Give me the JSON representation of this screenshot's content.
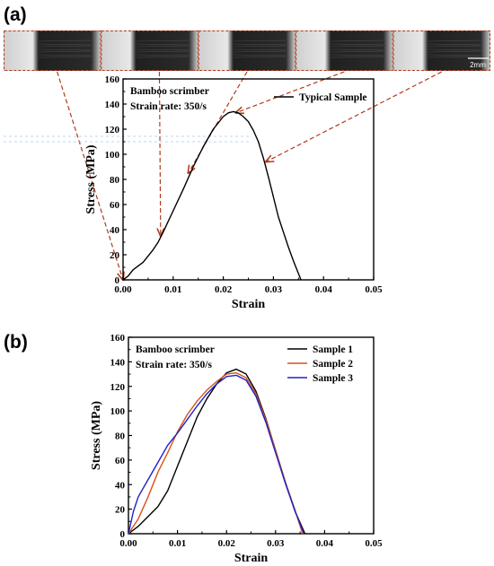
{
  "panel_labels": {
    "a": "(a)",
    "b": "(b)"
  },
  "colors": {
    "sample_1": "#000000",
    "sample_2": "#d4541e",
    "sample_3": "#2020c8",
    "arrow": "#b23a1a"
  },
  "image_strip": {
    "frames": 5,
    "scale_bar_label": "2mm"
  },
  "chart_data": [
    {
      "type": "line",
      "panel": "(a)",
      "xlabel": "Strain",
      "ylabel": "Stress (MPa)",
      "xlim": [
        0,
        0.05
      ],
      "ylim": [
        0,
        160
      ],
      "xticks": [
        "0.00",
        "0.01",
        "0.02",
        "0.03",
        "0.04",
        "0.05"
      ],
      "yticks": [
        "0",
        "20",
        "40",
        "60",
        "80",
        "100",
        "120",
        "140",
        "160"
      ],
      "annotation": [
        "Bamboo scrimber",
        "Strain rate: 350/s"
      ],
      "legend_position": "top-right",
      "series": [
        {
          "name": "Typical Sample",
          "color": "#000000",
          "points": [
            [
              0,
              0
            ],
            [
              0.001,
              3
            ],
            [
              0.002,
              8
            ],
            [
              0.003,
              11
            ],
            [
              0.004,
              14
            ],
            [
              0.005,
              19
            ],
            [
              0.006,
              24
            ],
            [
              0.007,
              30
            ],
            [
              0.008,
              38
            ],
            [
              0.01,
              55
            ],
            [
              0.012,
              72
            ],
            [
              0.014,
              90
            ],
            [
              0.016,
              106
            ],
            [
              0.018,
              120
            ],
            [
              0.02,
              130
            ],
            [
              0.021,
              133
            ],
            [
              0.022,
              134
            ],
            [
              0.023,
              133
            ],
            [
              0.024,
              130
            ],
            [
              0.025,
              126
            ],
            [
              0.026,
              119
            ],
            [
              0.027,
              110
            ],
            [
              0.028,
              97
            ],
            [
              0.029,
              82
            ],
            [
              0.03,
              66
            ],
            [
              0.031,
              50
            ],
            [
              0.032,
              38
            ],
            [
              0.033,
              26
            ],
            [
              0.034,
              15
            ],
            [
              0.035,
              5
            ],
            [
              0.0355,
              0
            ]
          ]
        }
      ],
      "markers": [
        [
          0,
          0
        ],
        [
          0.0075,
          35
        ],
        [
          0.013,
          85
        ],
        [
          0.0225,
          133
        ],
        [
          0.0285,
          94
        ]
      ]
    },
    {
      "type": "line",
      "panel": "(b)",
      "xlabel": "Strain",
      "ylabel": "Stress (MPa)",
      "xlim": [
        0,
        0.05
      ],
      "ylim": [
        0,
        160
      ],
      "xticks": [
        "0.00",
        "0.01",
        "0.02",
        "0.03",
        "0.04",
        "0.05"
      ],
      "yticks": [
        "0",
        "20",
        "40",
        "60",
        "80",
        "100",
        "120",
        "140",
        "160"
      ],
      "annotation": [
        "Bamboo scrimber",
        "Strain rate: 350/s"
      ],
      "legend_position": "top-right",
      "series": [
        {
          "name": "Sample 1",
          "color": "#000000",
          "points": [
            [
              0,
              0
            ],
            [
              0.002,
              6
            ],
            [
              0.004,
              14
            ],
            [
              0.006,
              22
            ],
            [
              0.008,
              35
            ],
            [
              0.01,
              55
            ],
            [
              0.012,
              75
            ],
            [
              0.014,
              95
            ],
            [
              0.016,
              110
            ],
            [
              0.018,
              122
            ],
            [
              0.02,
              131
            ],
            [
              0.022,
              134
            ],
            [
              0.024,
              130
            ],
            [
              0.026,
              116
            ],
            [
              0.028,
              94
            ],
            [
              0.03,
              68
            ],
            [
              0.032,
              42
            ],
            [
              0.034,
              18
            ],
            [
              0.036,
              0
            ]
          ]
        },
        {
          "name": "Sample 2",
          "color": "#d4541e",
          "points": [
            [
              0,
              0
            ],
            [
              0.002,
              12
            ],
            [
              0.004,
              30
            ],
            [
              0.006,
              50
            ],
            [
              0.008,
              66
            ],
            [
              0.01,
              83
            ],
            [
              0.012,
              97
            ],
            [
              0.014,
              108
            ],
            [
              0.016,
              117
            ],
            [
              0.018,
              124
            ],
            [
              0.02,
              130
            ],
            [
              0.022,
              131
            ],
            [
              0.024,
              127
            ],
            [
              0.026,
              114
            ],
            [
              0.028,
              93
            ],
            [
              0.03,
              68
            ],
            [
              0.032,
              42
            ],
            [
              0.034,
              19
            ],
            [
              0.0355,
              0
            ]
          ]
        },
        {
          "name": "Sample 3",
          "color": "#2020c8",
          "points": [
            [
              0,
              0
            ],
            [
              0.001,
              18
            ],
            [
              0.002,
              30
            ],
            [
              0.004,
              44
            ],
            [
              0.006,
              58
            ],
            [
              0.008,
              72
            ],
            [
              0.01,
              82
            ],
            [
              0.012,
              93
            ],
            [
              0.014,
              104
            ],
            [
              0.016,
              114
            ],
            [
              0.018,
              122
            ],
            [
              0.02,
              128
            ],
            [
              0.022,
              129
            ],
            [
              0.024,
              125
            ],
            [
              0.026,
              112
            ],
            [
              0.028,
              91
            ],
            [
              0.03,
              66
            ],
            [
              0.032,
              41
            ],
            [
              0.034,
              18
            ],
            [
              0.0358,
              0
            ]
          ]
        }
      ]
    }
  ]
}
